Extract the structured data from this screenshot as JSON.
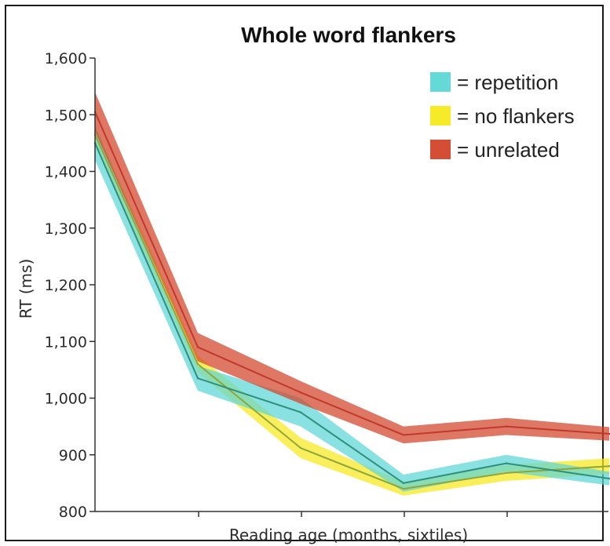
{
  "chart_data": {
    "type": "line",
    "title": "Whole word flankers",
    "xlabel": "Reading age (months, sixtiles)",
    "ylabel": "RT (ms)",
    "x": [
      1,
      2,
      3,
      4,
      5,
      6
    ],
    "ylim": [
      800,
      1600
    ],
    "yticks": [
      800,
      900,
      1000,
      1100,
      1200,
      1300,
      1400,
      1500,
      1600
    ],
    "ytick_labels": [
      "800",
      "900",
      "1,000",
      "1,100",
      "1,200",
      "1,300",
      "1,400",
      "1,500",
      "1,600"
    ],
    "grid": false,
    "legend_position": "top-right",
    "series": [
      {
        "name": "= no flankers",
        "color": "#f7e91e",
        "line_color": "#8fa63a",
        "values": [
          1465,
          1060,
          912,
          840,
          868,
          880
        ],
        "band": [
          15,
          15,
          18,
          12,
          14,
          14
        ]
      },
      {
        "name": "= repetition",
        "color": "#5dd6d6",
        "line_color": "#2e8f7a",
        "values": [
          1450,
          1035,
          975,
          850,
          885,
          858
        ],
        "band": [
          30,
          22,
          25,
          15,
          15,
          12
        ]
      },
      {
        "name": "= unrelated",
        "color": "#d2432a",
        "line_color": "#c1392b",
        "values": [
          1505,
          1090,
          1010,
          935,
          950,
          937
        ],
        "band": [
          35,
          25,
          20,
          15,
          15,
          12
        ]
      }
    ],
    "legend_order": [
      1,
      0,
      2
    ]
  }
}
